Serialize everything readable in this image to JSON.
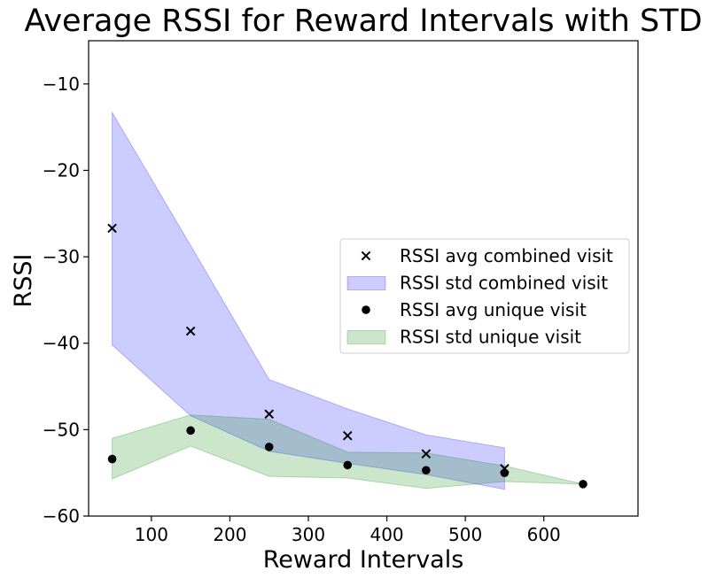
{
  "chart_data": {
    "type": "scatter",
    "title": "Average RSSI for Reward Intervals with STD",
    "xlabel": "Reward Intervals",
    "ylabel": "RSSI",
    "xlim": [
      20,
      720
    ],
    "ylim": [
      -60,
      -5
    ],
    "xticks": [
      {
        "value": 100,
        "label": "100"
      },
      {
        "value": 200,
        "label": "200"
      },
      {
        "value": 300,
        "label": "300"
      },
      {
        "value": 400,
        "label": "400"
      },
      {
        "value": 500,
        "label": "500"
      },
      {
        "value": 600,
        "label": "600"
      }
    ],
    "yticks": [
      {
        "value": -10,
        "label": "−10"
      },
      {
        "value": -20,
        "label": "−20"
      },
      {
        "value": -30,
        "label": "−30"
      },
      {
        "value": -40,
        "label": "−40"
      },
      {
        "value": -50,
        "label": "−50"
      },
      {
        "value": -60,
        "label": "−60"
      }
    ],
    "grid": false,
    "legend_position": "center-right",
    "series": [
      {
        "name": "RSSI avg combined visit",
        "kind": "scatter",
        "marker": "x",
        "color": "#000000",
        "x": [
          50,
          150,
          250,
          350,
          450,
          550
        ],
        "y": [
          -26.7,
          -38.6,
          -48.2,
          -50.7,
          -52.8,
          -54.5
        ]
      },
      {
        "name": "RSSI std combined visit",
        "kind": "band",
        "color": "#0000ff",
        "x": [
          50,
          150,
          250,
          350,
          450,
          550
        ],
        "upper": [
          -13.3,
          -28.7,
          -44.2,
          -47.6,
          -50.6,
          -52.1
        ],
        "lower": [
          -40.2,
          -48.4,
          -52.5,
          -53.9,
          -55.2,
          -56.9
        ]
      },
      {
        "name": "RSSI avg unique visit",
        "kind": "scatter",
        "marker": "o",
        "color": "#000000",
        "x": [
          50,
          150,
          250,
          350,
          450,
          550,
          650
        ],
        "y": [
          -53.4,
          -50.1,
          -52.0,
          -54.1,
          -54.7,
          -55.0,
          -56.3
        ]
      },
      {
        "name": "RSSI std unique visit",
        "kind": "band",
        "color": "#008000",
        "x": [
          50,
          150,
          250,
          350,
          450,
          550,
          650
        ],
        "upper": [
          -51.0,
          -48.3,
          -48.8,
          -52.6,
          -52.7,
          -54.2,
          -56.3
        ],
        "lower": [
          -55.7,
          -51.9,
          -55.4,
          -55.6,
          -56.8,
          -56.0,
          -56.3
        ]
      }
    ],
    "legend_order": [
      0,
      1,
      2,
      3
    ]
  }
}
